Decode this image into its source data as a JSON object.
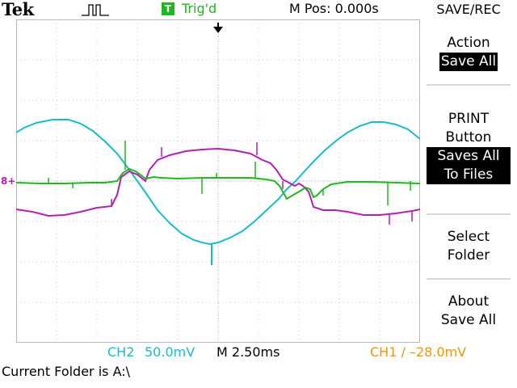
{
  "header": {
    "brand": "Tek",
    "acquire_icon": "run-pulse-icon",
    "trig_badge": "T",
    "trig_status": "Trig'd",
    "position": "M Pos: 0.000s",
    "menu_title": "SAVE/REC"
  },
  "menu": {
    "action": {
      "label": "Action",
      "value": "Save All"
    },
    "print_button": {
      "line1": "PRINT",
      "line2": "Button",
      "value1": "Saves All",
      "value2": "To Files"
    },
    "select_folder": {
      "line1": "Select",
      "line2": "Folder"
    },
    "about": {
      "line1": "About",
      "line2": "Save All"
    }
  },
  "status": {
    "ch2_label": "CH2",
    "ch2_scale": "50.0mV",
    "timebase": "M 2.50ms",
    "ch1_trigger": "CH1 ∕ –28.0mV",
    "folder_text": "Current Folder is A:\\"
  },
  "markers": {
    "ground_marker": "8+"
  },
  "colors": {
    "ch_cyan": "#19bcc6",
    "ch_magenta": "#b31fb3",
    "ch_green": "#1fb81f",
    "trigger_orange": "#f0950a",
    "grid": "#c8c8c8"
  }
}
